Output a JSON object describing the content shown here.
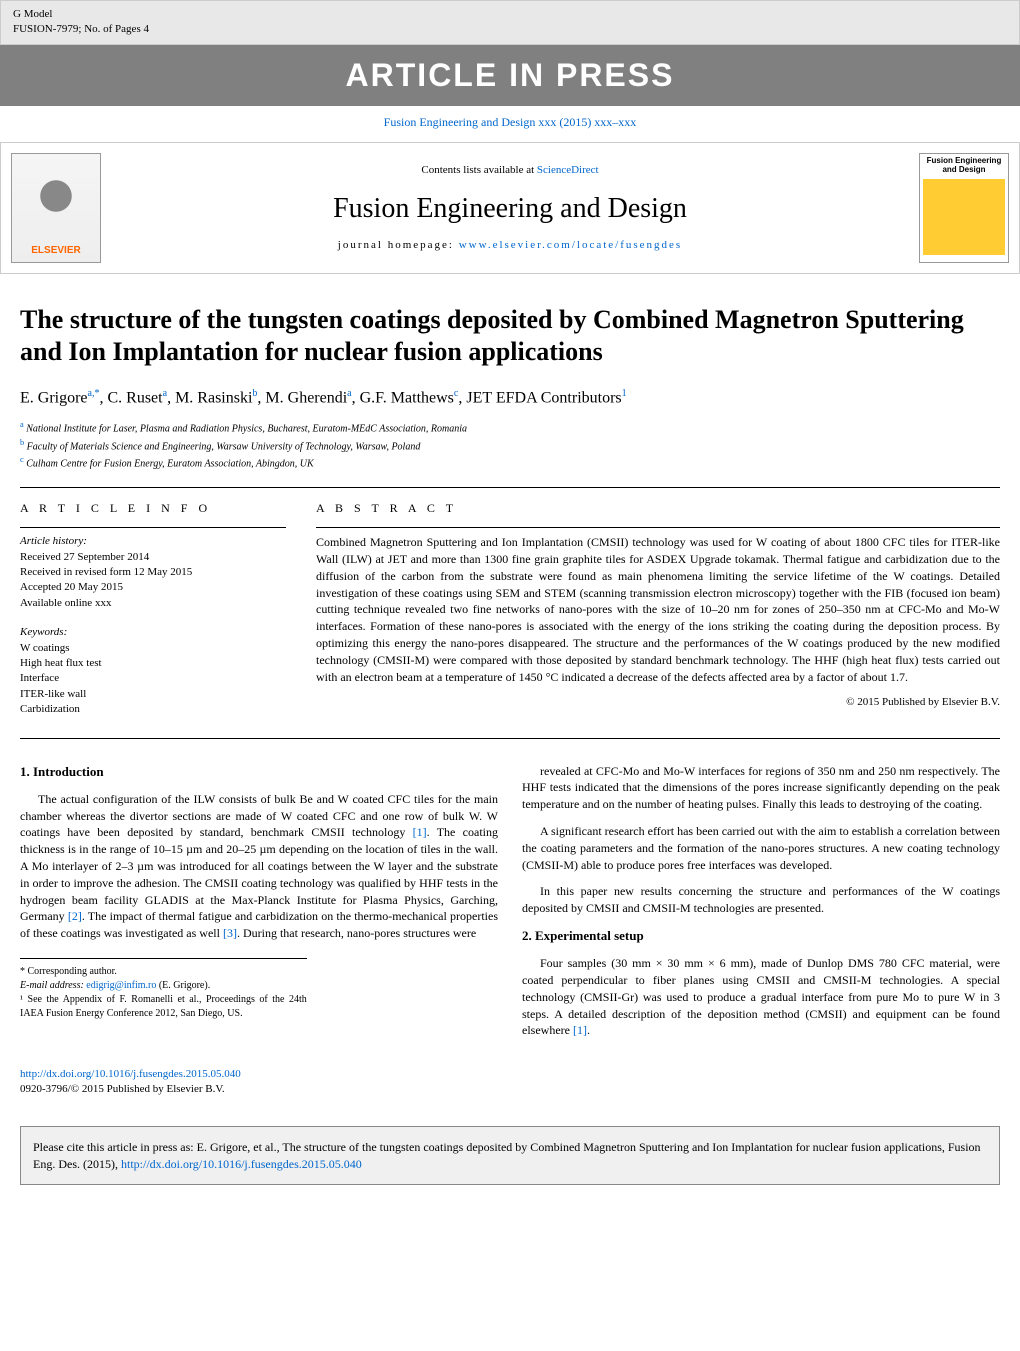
{
  "header": {
    "gmodel": "G Model",
    "ref_code": "FUSION-7979;   No. of Pages 4",
    "banner_text": "ARTICLE IN PRESS",
    "journal_ref": "Fusion Engineering and Design xxx (2015) xxx–xxx"
  },
  "banner": {
    "contents_prefix": "Contents lists available at ",
    "contents_link": "ScienceDirect",
    "journal_name": "Fusion Engineering and Design",
    "homepage_prefix": "journal homepage: ",
    "homepage_link": "www.elsevier.com/locate/fusengdes",
    "elsevier_label": "ELSEVIER",
    "cover_title": "Fusion Engineering and Design"
  },
  "title": "The structure of the tungsten coatings deposited by Combined Magnetron Sputtering and Ion Implantation for nuclear fusion applications",
  "authors_html": "E. Grigore<sup>a,*</sup>, C. Ruset<sup>a</sup>, M. Rasinski<sup>b</sup>, M. Gherendi<sup>a</sup>, G.F. Matthews<sup>c</sup>, JET EFDA Contributors<sup>1</sup>",
  "affiliations": [
    {
      "sup": "a",
      "text": "National Institute for Laser, Plasma and Radiation Physics, Bucharest, Euratom-MEdC Association, Romania"
    },
    {
      "sup": "b",
      "text": "Faculty of Materials Science and Engineering, Warsaw University of Technology, Warsaw, Poland"
    },
    {
      "sup": "c",
      "text": "Culham Centre for Fusion Energy, Euratom Association, Abingdon, UK"
    }
  ],
  "article_info": {
    "heading": "A R T I C L E   I N F O",
    "history_label": "Article history:",
    "history": [
      "Received 27 September 2014",
      "Received in revised form 12 May 2015",
      "Accepted 20 May 2015",
      "Available online xxx"
    ],
    "keywords_label": "Keywords:",
    "keywords": [
      "W coatings",
      "High heat flux test",
      "Interface",
      "ITER-like wall",
      "Carbidization"
    ]
  },
  "abstract": {
    "heading": "A B S T R A C T",
    "text": "Combined Magnetron Sputtering and Ion Implantation (CMSII) technology was used for W coating of about 1800 CFC tiles for ITER-like Wall (ILW) at JET and more than 1300 fine grain graphite tiles for ASDEX Upgrade tokamak. Thermal fatigue and carbidization due to the diffusion of the carbon from the substrate were found as main phenomena limiting the service lifetime of the W coatings. Detailed investigation of these coatings using SEM and STEM (scanning transmission electron microscopy) together with the FIB (focused ion beam) cutting technique revealed two fine networks of nano-pores with the size of 10–20 nm for zones of 250–350 nm at CFC-Mo and Mo-W interfaces. Formation of these nano-pores is associated with the energy of the ions striking the coating during the deposition process. By optimizing this energy the nano-pores disappeared. The structure and the performances of the W coatings produced by the new modified technology (CMSII-M) were compared with those deposited by standard benchmark technology. The HHF (high heat flux) tests carried out with an electron beam at a temperature of 1450 °C indicated a decrease of the defects affected area by a factor of about 1.7.",
    "copyright": "© 2015 Published by Elsevier B.V."
  },
  "body": {
    "col1": {
      "h": "1. Introduction",
      "p1": "The actual configuration of the ILW consists of bulk Be and W coated CFC tiles for the main chamber whereas the divertor sections are made of W coated CFC and one row of bulk W. W coatings have been deposited by standard, benchmark CMSII technology [1]. The coating thickness is in the range of 10–15 µm and 20–25 µm depending on the location of tiles in the wall. A Mo interlayer of 2–3 µm was introduced for all coatings between the W layer and the substrate in order to improve the adhesion. The CMSII coating technology was qualified by HHF tests in the hydrogen beam facility GLADIS at the Max-Planck Institute for Plasma Physics, Garching, Germany [2]. The impact of thermal fatigue and carbidization on the thermo-mechanical properties of these coatings was investigated as well [3]. During that research, nano-pores structures were"
    },
    "col2": {
      "p1": "revealed at CFC-Mo and Mo-W interfaces for regions of 350 nm and 250 nm respectively. The HHF tests indicated that the dimensions of the pores increase significantly depending on the peak temperature and on the number of heating pulses. Finally this leads to destroying of the coating.",
      "p2": "A significant research effort has been carried out with the aim to establish a correlation between the coating parameters and the formation of the nano-pores structures. A new coating technology (CMSII-M) able to produce pores free interfaces was developed.",
      "p3": "In this paper new results concerning the structure and performances of the W coatings deposited by CMSII and CMSII-M technologies are presented.",
      "h2": "2. Experimental setup",
      "p4": "Four samples (30 mm × 30 mm × 6 mm), made of Dunlop DMS 780 CFC material, were coated perpendicular to fiber planes using CMSII and CMSII-M technologies. A special technology (CMSII-Gr) was used to produce a gradual interface from pure Mo to pure W in 3 steps. A detailed description of the deposition method (CMSII) and equipment can be found elsewhere [1]."
    }
  },
  "footnotes": {
    "corr": "* Corresponding author.",
    "email_label": "E-mail address: ",
    "email": "edigrig@infim.ro",
    "email_suffix": " (E. Grigore).",
    "note1": "¹ See the Appendix of F. Romanelli et al., Proceedings of the 24th IAEA Fusion Energy Conference 2012, San Diego, US."
  },
  "doi": {
    "link": "http://dx.doi.org/10.1016/j.fusengdes.2015.05.040",
    "issn": "0920-3796/© 2015 Published by Elsevier B.V."
  },
  "cite_box": {
    "prefix": "Please cite this article in press as: E. Grigore, et al., The structure of the tungsten coatings deposited by Combined Magnetron Sputtering and Ion Implantation for nuclear fusion applications, Fusion Eng. Des. (2015), ",
    "link": "http://dx.doi.org/10.1016/j.fusengdes.2015.05.040"
  },
  "colors": {
    "link": "#0066cc",
    "header_bg": "#e8e8e8",
    "banner_bg": "#808080",
    "cite_bg": "#f0f0f0",
    "elsevier_orange": "#ff6600"
  }
}
